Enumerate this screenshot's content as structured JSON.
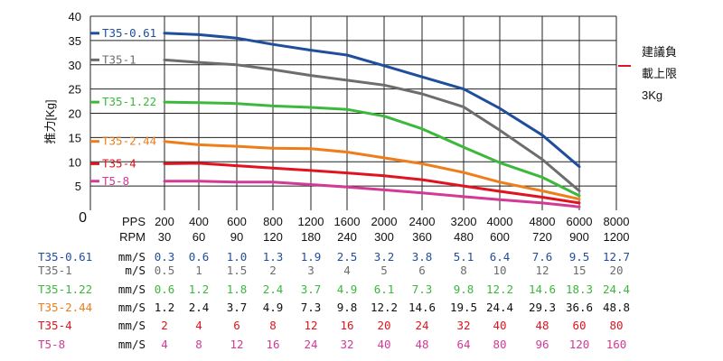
{
  "chart_data": {
    "type": "line",
    "ylabel": "推力[Kg]",
    "ylim": [
      0,
      40
    ],
    "yticks": [
      0,
      5,
      10,
      15,
      20,
      25,
      30,
      35,
      40
    ],
    "x_pps": [
      200,
      400,
      600,
      800,
      1200,
      1600,
      2000,
      2400,
      3200,
      4000,
      4800,
      6000,
      8000
    ],
    "x_rpm": [
      30,
      60,
      90,
      120,
      180,
      240,
      300,
      360,
      480,
      600,
      720,
      900,
      1200
    ],
    "x_header_pps": "PPS",
    "x_header_rpm": "RPM",
    "grid": true,
    "series": [
      {
        "name": "T35-0.61",
        "color": "#1f4e9c",
        "values": [
          36.5,
          36.2,
          35.5,
          34.2,
          33.0,
          32.0,
          29.8,
          27.5,
          25.0,
          21.0,
          15.5,
          9.0,
          null
        ],
        "unit": "mm/S",
        "speeds": [
          "0.3",
          "0.6",
          "1.0",
          "1.3",
          "1.9",
          "2.5",
          "3.2",
          "3.8",
          "5.1",
          "6.4",
          "7.6",
          "9.5",
          "12.7"
        ]
      },
      {
        "name": "T35-1",
        "color": "#6d6d6d",
        "values": [
          31.0,
          30.5,
          30.0,
          29.0,
          27.8,
          26.8,
          25.8,
          24.0,
          21.3,
          16.5,
          10.5,
          4.0,
          null
        ],
        "unit": "m/S",
        "speeds": [
          "0.5",
          "1",
          "1.5",
          "2",
          "3",
          "4",
          "5",
          "6",
          "8",
          "10",
          "12",
          "15",
          "20"
        ]
      },
      {
        "name": "T35-1.22",
        "color": "#3cb83c",
        "values": [
          22.3,
          22.2,
          22.0,
          21.5,
          21.2,
          20.8,
          19.4,
          16.8,
          13.0,
          9.8,
          6.8,
          3.0,
          null
        ],
        "unit": "mm/S",
        "speeds": [
          "0.6",
          "1.2",
          "1.8",
          "2.4",
          "3.7",
          "4.9",
          "6.1",
          "7.3",
          "9.8",
          "12.2",
          "14.6",
          "18.3",
          "24.4"
        ]
      },
      {
        "name": "T35-2.44",
        "color": "#ee7d1a",
        "values": [
          14.2,
          13.5,
          13.2,
          12.8,
          12.7,
          12.0,
          10.8,
          9.6,
          7.8,
          5.8,
          4.0,
          2.3,
          null
        ],
        "unit": "mm/S",
        "speeds": [
          "1.2",
          "2.4",
          "3.7",
          "4.9",
          "7.3",
          "9.8",
          "12.2",
          "14.6",
          "19.5",
          "24.4",
          "29.3",
          "36.6",
          "48.8"
        ]
      },
      {
        "name": "T35-4",
        "color": "#e0141e",
        "values": [
          9.6,
          9.7,
          9.2,
          8.7,
          8.2,
          7.7,
          7.1,
          6.3,
          5.0,
          3.9,
          2.7,
          1.5,
          null
        ],
        "unit": "mm/S",
        "speeds": [
          "2",
          "4",
          "6",
          "8",
          "12",
          "16",
          "20",
          "24",
          "32",
          "40",
          "48",
          "60",
          "80"
        ]
      },
      {
        "name": "T5-8",
        "color": "#d23a96",
        "values": [
          6.0,
          6.0,
          5.8,
          5.8,
          5.3,
          4.8,
          4.2,
          3.6,
          2.8,
          2.2,
          1.5,
          0.7,
          null
        ],
        "unit": "mm/S",
        "speeds": [
          "4",
          "8",
          "12",
          "16",
          "24",
          "32",
          "40",
          "48",
          "64",
          "80",
          "96",
          "120",
          "160"
        ]
      }
    ],
    "limit_note": [
      "建議負",
      "載上限",
      "3Kg"
    ],
    "limit_color": "#e0141e"
  }
}
